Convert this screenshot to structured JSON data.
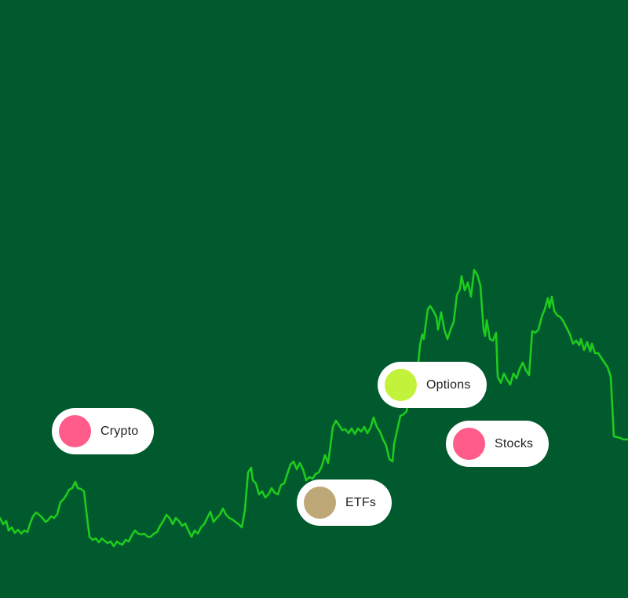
{
  "background_color": "#005a2e",
  "line_color": "#1ecb1e",
  "pills": [
    {
      "label": "Crypto",
      "dot_color": "#ff5c8a"
    },
    {
      "label": "ETFs",
      "dot_color": "#bfa878"
    },
    {
      "label": "Options",
      "dot_color": "#c3f23a"
    },
    {
      "label": "Stocks",
      "dot_color": "#ff5c8a"
    }
  ]
}
